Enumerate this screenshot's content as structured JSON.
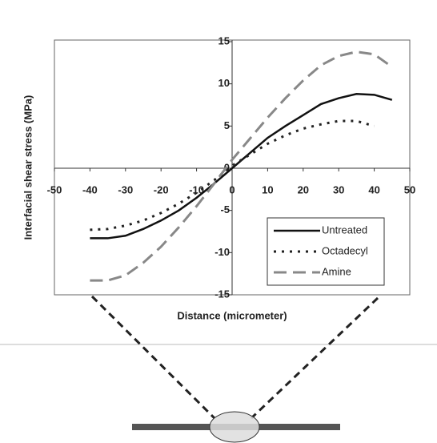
{
  "chart_data": {
    "type": "line",
    "x_label": "Distance (micrometer)",
    "y_label": "Interfacial shear stress (MPa)",
    "x": [
      -40,
      -35,
      -30,
      -25,
      -20,
      -15,
      -10,
      -5,
      0,
      5,
      10,
      15,
      20,
      25,
      30,
      35,
      40,
      45
    ],
    "series": [
      {
        "name": "Untreated",
        "color": "#111111",
        "dash": "solid",
        "values": [
          -8.3,
          -8.3,
          -8.0,
          -7.2,
          -6.2,
          -5.0,
          -3.5,
          -1.8,
          0,
          1.8,
          3.6,
          5.0,
          6.3,
          7.6,
          8.3,
          8.8,
          8.7,
          8.1
        ]
      },
      {
        "name": "Octadecyl",
        "color": "#222222",
        "dash": "dotted",
        "values": [
          -7.3,
          -7.2,
          -6.8,
          -6.2,
          -5.3,
          -4.2,
          -2.9,
          -1.4,
          0.3,
          1.6,
          2.9,
          3.9,
          4.7,
          5.2,
          5.6,
          5.6,
          5.0,
          null
        ]
      },
      {
        "name": "Amine",
        "color": "#888888",
        "dash": "dashed",
        "values": [
          -13.3,
          -13.3,
          -12.7,
          -11.2,
          -9.3,
          -7.0,
          -4.5,
          -1.8,
          1.0,
          3.5,
          6.0,
          8.3,
          10.4,
          12.2,
          13.3,
          13.8,
          13.5,
          12.0
        ]
      }
    ],
    "xlim": [
      -50,
      50
    ],
    "xticks": [
      -50,
      -40,
      -30,
      -20,
      -10,
      0,
      10,
      20,
      30,
      40,
      50
    ],
    "ylim": [
      -15,
      15
    ],
    "yticks": [
      -15,
      -10,
      -5,
      0,
      5,
      10,
      15
    ],
    "legend": "lower right"
  }
}
